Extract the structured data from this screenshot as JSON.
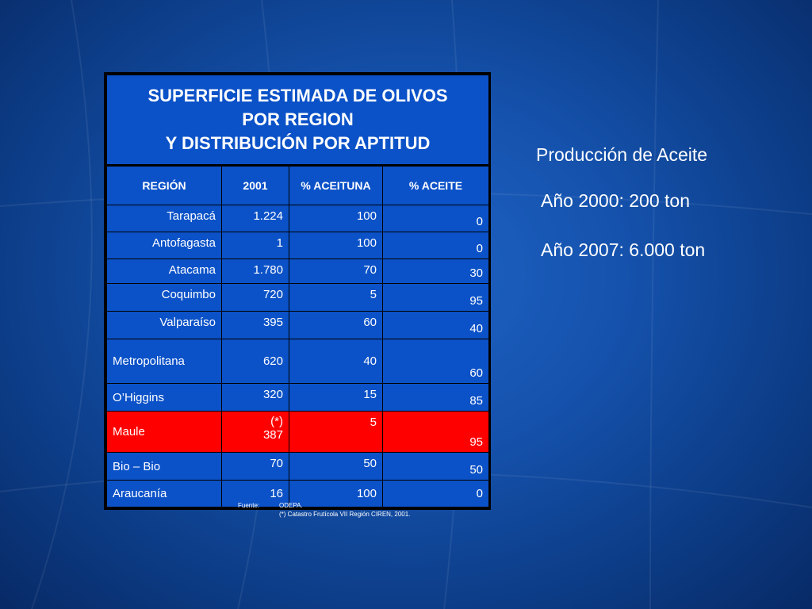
{
  "table": {
    "title_lines": [
      "SUPERFICIE ESTIMADA DE OLIVOS",
      "POR REGION",
      "Y DISTRIBUCIÓN POR APTITUD"
    ],
    "headers": [
      "REGIÓN",
      "2001",
      "% ACEITUNA",
      "% ACEITE"
    ],
    "rows": [
      {
        "region": "Tarapacá",
        "y2001": "1.224",
        "aceituna": "100",
        "aceite": "0"
      },
      {
        "region": "Antofagasta",
        "y2001": "1",
        "aceituna": "100",
        "aceite": "0"
      },
      {
        "region": "Atacama",
        "y2001": "1.780",
        "aceituna": "70",
        "aceite": "30"
      },
      {
        "region": "Coquimbo",
        "y2001": "720",
        "aceituna": "5",
        "aceite": "95"
      },
      {
        "region": "Valparaíso",
        "y2001": "395",
        "aceituna": "60",
        "aceite": "40"
      },
      {
        "region": "Metropolitana",
        "y2001": "620",
        "aceituna": "40",
        "aceite": "60"
      },
      {
        "region": "O’Higgins",
        "y2001": "320",
        "aceituna": "15",
        "aceite": "85"
      },
      {
        "region": "Maule",
        "y2001_note": "(*)",
        "y2001": "387",
        "aceituna": "5",
        "aceite": "95"
      },
      {
        "region": "Bio – Bio",
        "y2001": "70",
        "aceituna": "50",
        "aceite": "50"
      },
      {
        "region": "Araucanía",
        "y2001": "16",
        "aceituna": "100",
        "aceite": "0"
      }
    ],
    "highlight_color": "#ff0000"
  },
  "footnote": {
    "label": "Fuente:",
    "source": "ODEPA.",
    "note": "(*) Catastro Frutícola VII Región CIREN, 2001."
  },
  "side_text": {
    "title": "Producción de Aceite",
    "line1": "Año 2000: 200 ton",
    "line2": "Año 2007: 6.000 ton"
  }
}
